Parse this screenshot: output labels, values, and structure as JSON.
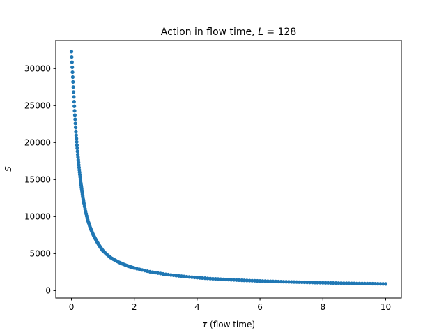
{
  "chart_data": {
    "type": "scatter",
    "title_main": "Action in flow time, ",
    "title_var": "L",
    "title_rest": " = 128",
    "xlabel_var": "τ",
    "xlabel_rest": " (flow time)",
    "ylabel": "S",
    "xlim": [
      -0.5,
      10.5
    ],
    "ylim": [
      -1000,
      33800
    ],
    "x_ticks": [
      0,
      2,
      4,
      6,
      8,
      10
    ],
    "y_ticks": [
      0,
      5000,
      10000,
      15000,
      20000,
      25000,
      30000
    ],
    "grid": false,
    "legend": "none",
    "marker_color": "#1f77b4",
    "series": [
      {
        "x": [
          0.0,
          0.05,
          0.1,
          0.15,
          0.2,
          0.25,
          0.3,
          0.35,
          0.4,
          0.5,
          0.6,
          0.7,
          0.8,
          0.9,
          1.0,
          1.25,
          1.5,
          1.75,
          2.0,
          2.5,
          3.0,
          3.5,
          4.0,
          4.5,
          5.0,
          5.5,
          6.0,
          6.5,
          7.0,
          7.5,
          8.0,
          8.5,
          9.0,
          9.5,
          10.0
        ],
        "y": [
          32300,
          28200,
          24300,
          21000,
          18400,
          16300,
          14500,
          13000,
          11700,
          9800,
          8500,
          7500,
          6700,
          6000,
          5400,
          4450,
          3850,
          3400,
          3050,
          2550,
          2200,
          1950,
          1750,
          1600,
          1480,
          1380,
          1300,
          1230,
          1170,
          1110,
          1060,
          1010,
          970,
          940,
          900
        ]
      }
    ]
  }
}
